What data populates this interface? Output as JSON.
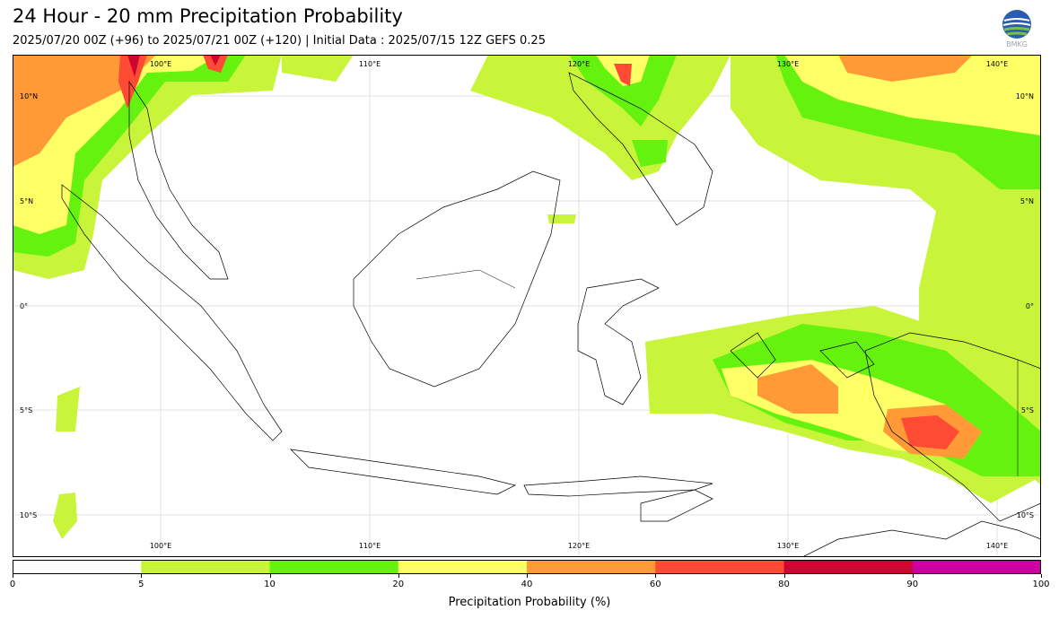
{
  "title": "24 Hour - 20 mm Precipitation Probability",
  "subtitle": "2025/07/20 00Z (+96) to 2025/07/21 00Z (+120) | Initial Data : 2025/07/15 12Z GEFS 0.25",
  "logo": {
    "icon": "bmkg-logo-icon",
    "text": "BMKG"
  },
  "map": {
    "lon_labels": [
      "100°E",
      "110°E",
      "120°E",
      "130°E",
      "140°E"
    ],
    "lat_labels": [
      "10°N",
      "5°N",
      "0°",
      "5°S",
      "10°S"
    ]
  },
  "colorbar": {
    "label": "Precipitation Probability (%)",
    "ticks": [
      "0",
      "5",
      "10",
      "20",
      "40",
      "60",
      "80",
      "90",
      "100"
    ],
    "colors": [
      "#ffffff",
      "#c8f43a",
      "#66f20f",
      "#ffff66",
      "#ff9a36",
      "#ff4b34",
      "#cc0630",
      "#cc00a0"
    ]
  }
}
